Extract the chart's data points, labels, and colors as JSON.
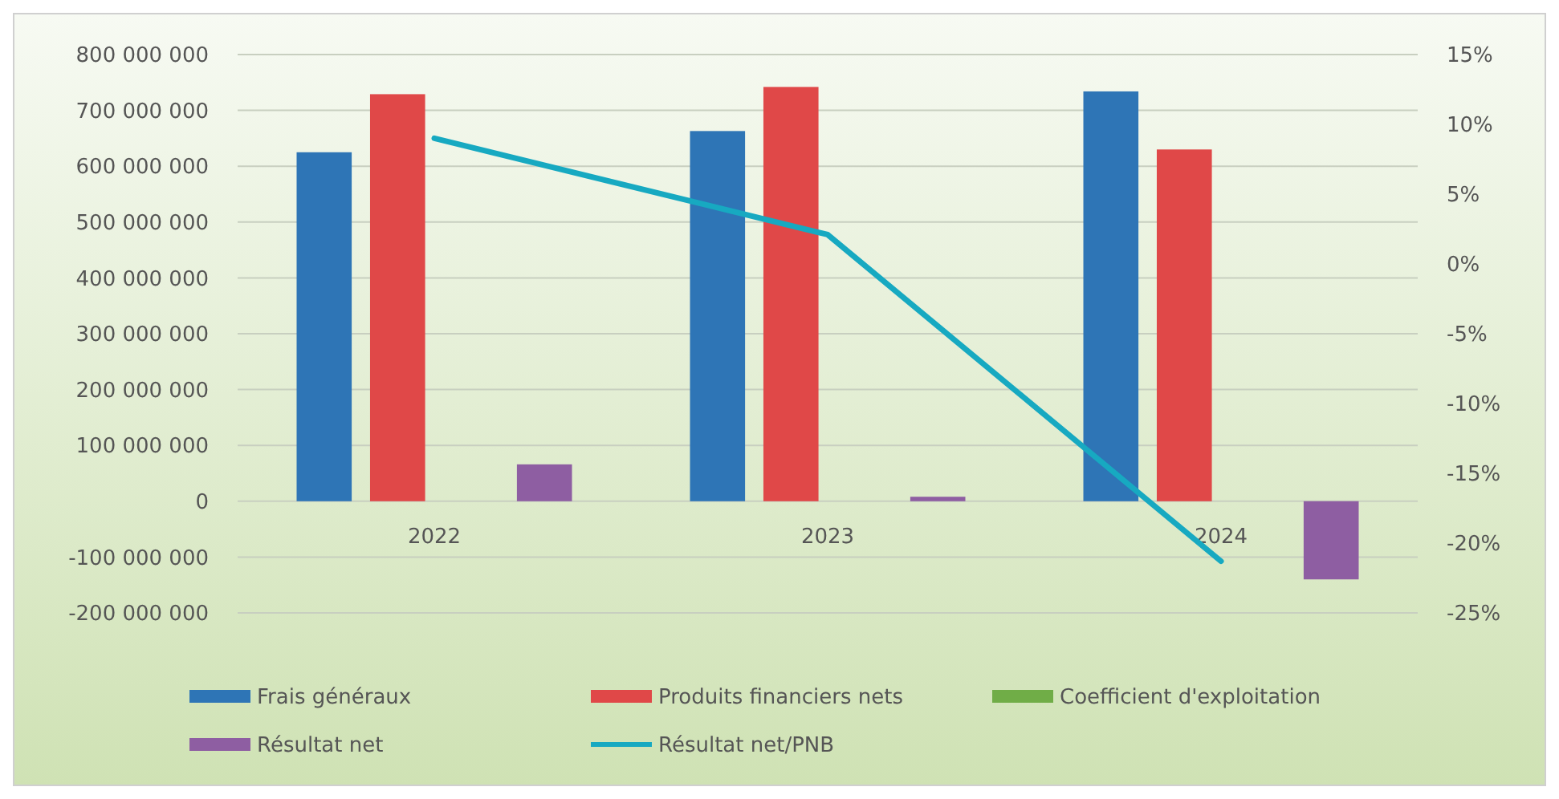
{
  "chart_data": {
    "type": "bar",
    "categories": [
      "2022",
      "2023",
      "2024"
    ],
    "series": [
      {
        "name": "Frais généraux",
        "color": "#2e75b6",
        "values": [
          625000000,
          663000000,
          734000000
        ]
      },
      {
        "name": "Produits financiers nets",
        "color": "#e04848",
        "values": [
          729000000,
          742000000,
          630000000
        ]
      },
      {
        "name": "Coefficient d'exploitation",
        "color": "#70ad47",
        "values": [
          null,
          null,
          null
        ]
      },
      {
        "name": "Résultat net",
        "color": "#8e5ea2",
        "values": [
          66000000,
          8000000,
          -140000000
        ]
      },
      {
        "name": "Résultat net/PNB",
        "type": "line",
        "axis": "y2",
        "color": "#17a9c1",
        "values": [
          9,
          2.1,
          -21.3
        ]
      }
    ],
    "ylim": [
      -200000000,
      800000000
    ],
    "yticks": [
      {
        "value": -200000000,
        "label": "-200 000 000"
      },
      {
        "value": -100000000,
        "label": "-100 000 000"
      },
      {
        "value": 0,
        "label": "0"
      },
      {
        "value": 100000000,
        "label": "100 000 000"
      },
      {
        "value": 200000000,
        "label": "200 000 000"
      },
      {
        "value": 300000000,
        "label": "300 000 000"
      },
      {
        "value": 400000000,
        "label": "400 000 000"
      },
      {
        "value": 500000000,
        "label": "500 000 000"
      },
      {
        "value": 600000000,
        "label": "600 000 000"
      },
      {
        "value": 700000000,
        "label": "700 000 000"
      },
      {
        "value": 800000000,
        "label": "800 000 000"
      }
    ],
    "y2lim": [
      -25,
      15
    ],
    "y2ticks": [
      {
        "value": -25,
        "label": "-25%"
      },
      {
        "value": -20,
        "label": "-20%"
      },
      {
        "value": -15,
        "label": "-15%"
      },
      {
        "value": -10,
        "label": "-10%"
      },
      {
        "value": -5,
        "label": "-5%"
      },
      {
        "value": 0,
        "label": "0%"
      },
      {
        "value": 5,
        "label": "5%"
      },
      {
        "value": 10,
        "label": "10%"
      },
      {
        "value": 15,
        "label": "15%"
      }
    ],
    "grid": "y",
    "legend": "bottom"
  }
}
